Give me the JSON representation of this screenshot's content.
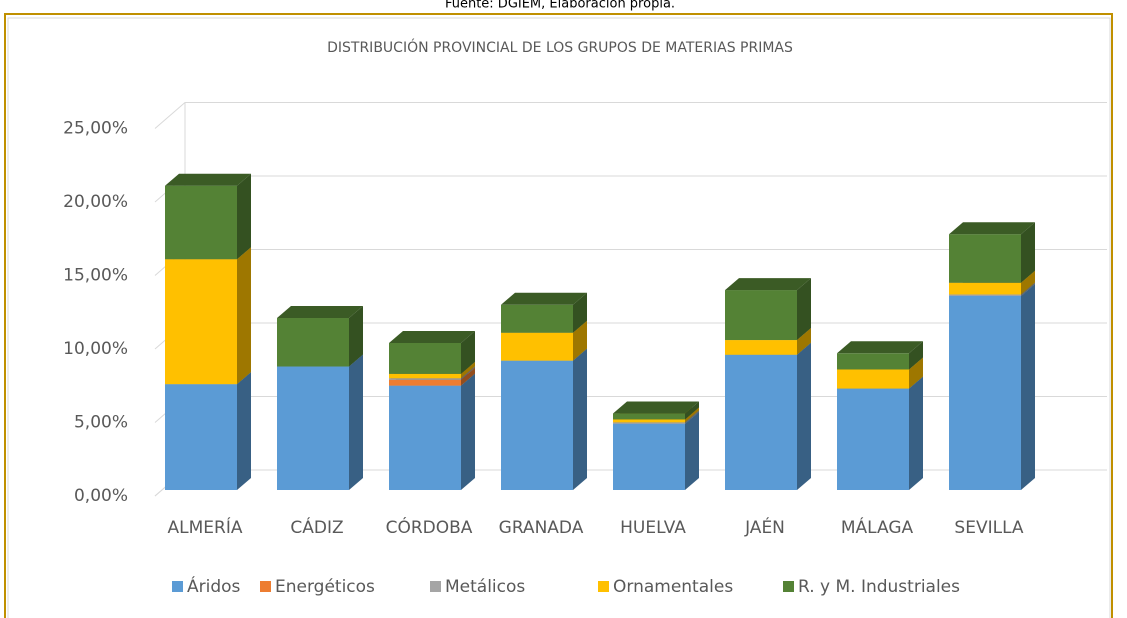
{
  "source": "Fuente: DGIEM, Elaboración propia.",
  "chart_data": {
    "type": "bar3d_stacked",
    "title": "DISTRIBUCIÓN PROVINCIAL DE LOS GRUPOS DE MATERIAS PRIMAS",
    "categories": [
      "ALMERÍA",
      "CÁDIZ",
      "CÓRDOBA",
      "GRANADA",
      "HUELVA",
      "JAÉN",
      "MÁLAGA",
      "SEVILLA"
    ],
    "series": [
      {
        "name": "Áridos",
        "color": "#5b9bd5",
        "values": [
          7.2,
          8.4,
          7.1,
          8.8,
          4.5,
          9.2,
          6.9,
          13.2
        ]
      },
      {
        "name": "Energéticos",
        "color": "#ed7d31",
        "values": [
          0,
          0,
          0.4,
          0,
          0,
          0,
          0,
          0
        ]
      },
      {
        "name": "Metálicos",
        "color": "#a5a5a5",
        "values": [
          0,
          0,
          0.1,
          0,
          0.1,
          0,
          0,
          0.1
        ]
      },
      {
        "name": "Ornamentales",
        "color": "#ffc000",
        "values": [
          8.5,
          0,
          0.3,
          1.9,
          0.2,
          1.0,
          1.3,
          0.8
        ]
      },
      {
        "name": "R. y M. Industriales",
        "color": "#548235",
        "values": [
          5.0,
          3.3,
          2.1,
          1.9,
          0.4,
          3.4,
          1.1,
          3.3
        ]
      }
    ],
    "ylim": [
      0,
      25
    ],
    "yticks": [
      {
        "value": 0,
        "label": "0,00%"
      },
      {
        "value": 5,
        "label": "5,00%"
      },
      {
        "value": 10,
        "label": "10,00%"
      },
      {
        "value": 15,
        "label": "15,00%"
      },
      {
        "value": 20,
        "label": "20,00%"
      },
      {
        "value": 25,
        "label": "25,00%"
      }
    ],
    "grid": true,
    "legend": "bottom"
  }
}
